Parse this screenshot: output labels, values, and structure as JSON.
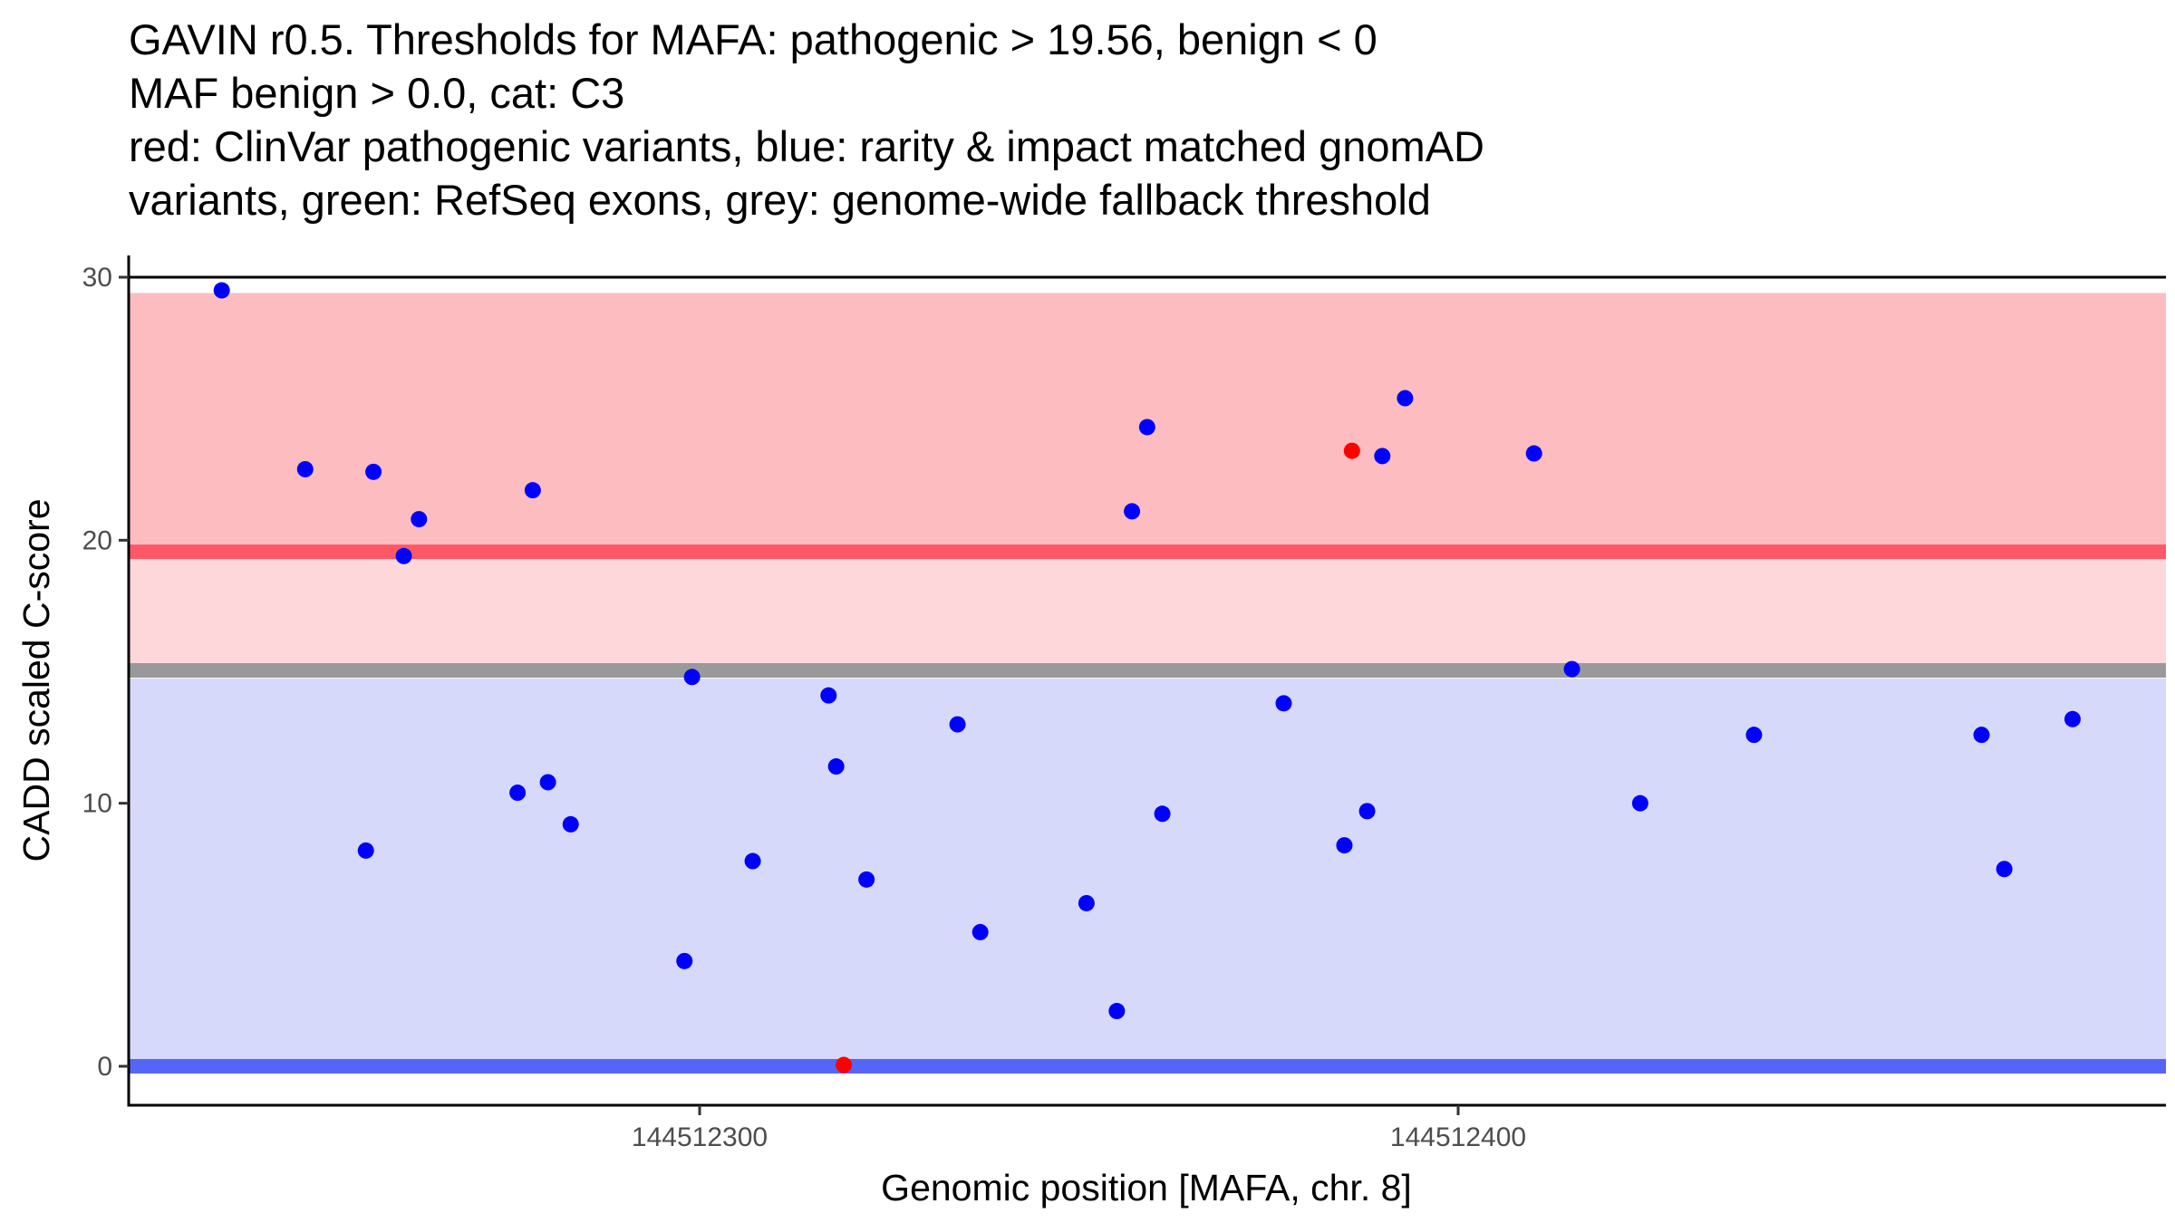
{
  "chart_data": {
    "type": "scatter",
    "title_lines": [
      "GAVIN r0.5. Thresholds for MAFA: pathogenic > 19.56, benign < 0",
      "MAF benign > 0.0, cat: C3",
      "red: ClinVar pathogenic variants, blue: rarity & impact matched gnomAD",
      "variants, green: RefSeq exons, grey: genome-wide fallback threshold"
    ],
    "xlabel": "Genomic position [MAFA, chr. 8]",
    "ylabel": "CADD scaled C-score",
    "xlim": [
      144512225,
      144512493
    ],
    "ylim": [
      -1.5,
      31
    ],
    "xticks": [
      144512300,
      144512400
    ],
    "xtick_labels": [
      "144512300",
      "144512400"
    ],
    "yticks": [
      0,
      10,
      20,
      30
    ],
    "ytick_labels": [
      "0",
      "10",
      "20",
      "30"
    ],
    "grid": false,
    "bands": [
      {
        "name": "pathogenic-region",
        "from": 19.56,
        "to": 29.4,
        "color": "#fdbcc0"
      },
      {
        "name": "grey-to-pathogenic-region",
        "from": 15.05,
        "to": 19.56,
        "color": "#fed7db"
      },
      {
        "name": "benign-region",
        "from": 0.25,
        "to": 14.75,
        "color": "#d7d9fb"
      }
    ],
    "hlines": [
      {
        "name": "pathogenic-threshold",
        "y": 19.56,
        "color": "#fd5866"
      },
      {
        "name": "fallback-threshold",
        "y": 15.05,
        "color": "#999999"
      },
      {
        "name": "benign-threshold",
        "y": 0,
        "color": "#5466f5"
      },
      {
        "name": "top-border",
        "y": 30,
        "color": "#000000"
      }
    ],
    "series": [
      {
        "name": "ClinVar pathogenic",
        "color": "#ff0000",
        "points": [
          [
            144512319,
            0.05
          ],
          [
            144512386,
            23.4
          ]
        ]
      },
      {
        "name": "gnomAD matched",
        "color": "#0000ff",
        "points": [
          [
            144512237,
            29.5
          ],
          [
            144512248,
            22.7
          ],
          [
            144512257,
            22.6
          ],
          [
            144512263,
            20.8
          ],
          [
            144512261,
            19.4
          ],
          [
            144512256,
            8.2
          ],
          [
            144512278,
            21.9
          ],
          [
            144512276,
            10.4
          ],
          [
            144512280,
            10.8
          ],
          [
            144512283,
            9.2
          ],
          [
            144512299,
            14.8
          ],
          [
            144512298,
            4.0
          ],
          [
            144512307,
            7.8
          ],
          [
            144512317,
            14.1
          ],
          [
            144512318,
            11.4
          ],
          [
            144512322,
            7.1
          ],
          [
            144512334,
            13.0
          ],
          [
            144512337,
            5.1
          ],
          [
            144512351,
            6.2
          ],
          [
            144512355,
            2.1
          ],
          [
            144512357,
            21.1
          ],
          [
            144512359,
            24.3
          ],
          [
            144512361,
            9.6
          ],
          [
            144512377,
            13.8
          ],
          [
            144512385,
            8.4
          ],
          [
            144512388,
            9.7
          ],
          [
            144512390,
            23.2
          ],
          [
            144512393,
            25.4
          ],
          [
            144512410,
            23.3
          ],
          [
            144512415,
            15.1
          ],
          [
            144512424,
            10.0
          ],
          [
            144512439,
            12.6
          ],
          [
            144512469,
            12.6
          ],
          [
            144512472,
            7.5
          ],
          [
            144512481,
            13.2
          ]
        ]
      }
    ]
  }
}
